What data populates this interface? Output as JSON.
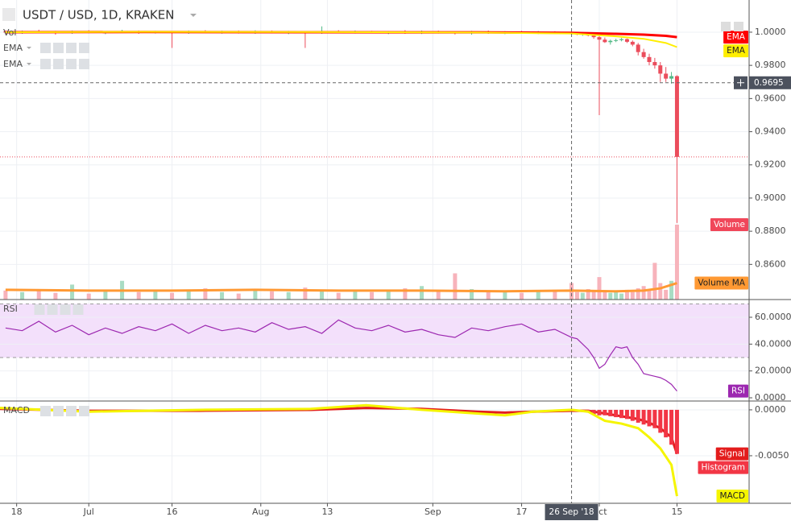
{
  "chart_data": [
    {
      "type": "candlestick",
      "title": "USDT / USD, 1D, KRAKEN",
      "indicators": [
        "Vol",
        "EMA",
        "EMA"
      ],
      "xlim": [
        14,
        149
      ],
      "ylim": [
        0.8388,
        1.0194
      ],
      "yticks": [
        {
          "value": 1.0,
          "label": "1.0000"
        },
        {
          "value": 0.98,
          "label": "0.9800"
        },
        {
          "value": 0.96,
          "label": "0.9600"
        },
        {
          "value": 0.94,
          "label": "0.9400"
        },
        {
          "value": 0.92,
          "label": "0.9200"
        },
        {
          "value": 0.9,
          "label": "0.9000"
        },
        {
          "value": 0.88,
          "label": "0.8800"
        },
        {
          "value": 0.86,
          "label": "0.8600"
        }
      ],
      "grid": true,
      "up_color": "#53b987",
      "down_color": "#eb4d5c",
      "x": [
        15,
        18,
        21,
        24,
        27,
        30,
        33,
        36,
        39,
        42,
        45,
        48,
        51,
        54,
        57,
        60,
        63,
        66,
        69,
        72,
        75,
        78,
        81,
        84,
        87,
        90,
        93,
        96,
        99,
        102,
        105,
        108,
        111,
        114,
        117,
        118,
        119,
        120,
        121,
        122,
        123,
        124,
        125,
        126,
        127,
        128,
        129,
        130,
        131,
        132,
        133,
        134,
        135,
        136
      ],
      "open": [
        1.0005,
        0.9998,
        1.0004,
        1.0,
        0.9996,
        1.0003,
        0.9999,
        1.0002,
        1.0006,
        0.9997,
        1.0001,
        0.9996,
        1.0003,
        0.9998,
        1.0002,
        0.9997,
        1.0004,
        0.9999,
        1.0001,
        0.9995,
        1.0006,
        0.9998,
        1.0003,
        0.9999,
        1.0,
        0.9996,
        1.0002,
        0.9998,
        0.9993,
        1.0001,
        0.9995,
        1.0,
        0.9997,
        1.0001,
        0.9996,
        0.999,
        0.9988,
        0.9992,
        0.998,
        0.997,
        0.9955,
        0.994,
        0.9948,
        0.9952,
        0.9958,
        0.9942,
        0.9925,
        0.988,
        0.985,
        0.982,
        0.98,
        0.975,
        0.972,
        0.9735
      ],
      "high": [
        1.0012,
        1.001,
        1.0015,
        1.0008,
        1.001,
        1.0012,
        1.0006,
        1.0014,
        1.001,
        1.0008,
        1.0006,
        1.001,
        1.0012,
        1.0009,
        1.001,
        1.0011,
        1.001,
        1.0008,
        1.0006,
        1.0035,
        1.0012,
        1.001,
        1.0008,
        1.0006,
        1.0012,
        1.001,
        1.0009,
        1.0004,
        1.0008,
        1.001,
        1.0006,
        1.0008,
        1.0007,
        1.0006,
        1.0004,
        0.9998,
        0.9995,
        0.9996,
        0.999,
        0.9985,
        0.9968,
        0.9955,
        0.996,
        0.9965,
        0.9962,
        0.995,
        0.9935,
        0.99,
        0.987,
        0.9845,
        0.982,
        0.979,
        0.976,
        0.974
      ],
      "low": [
        0.9992,
        0.999,
        0.9995,
        0.9985,
        0.999,
        0.9994,
        0.9988,
        0.9996,
        0.999,
        0.9992,
        0.9905,
        0.999,
        0.9995,
        0.9991,
        0.9992,
        0.999,
        0.9993,
        0.9988,
        0.9905,
        0.999,
        0.9994,
        0.9992,
        0.9995,
        0.9988,
        0.999,
        0.9989,
        0.9992,
        0.9986,
        0.9985,
        0.999,
        0.9988,
        0.9991,
        0.9989,
        0.999,
        0.9985,
        0.9982,
        0.9978,
        0.9975,
        0.996,
        0.95,
        0.9935,
        0.9925,
        0.994,
        0.9945,
        0.9935,
        0.9915,
        0.986,
        0.984,
        0.98,
        0.978,
        0.97,
        0.97,
        0.969,
        0.885
      ],
      "close": [
        0.9998,
        1.0004,
        1.0,
        0.9996,
        1.0003,
        0.9999,
        1.0002,
        1.0006,
        0.9997,
        1.0001,
        0.9996,
        1.0003,
        0.9998,
        1.0002,
        0.9997,
        1.0004,
        0.9999,
        1.0001,
        0.9995,
        1.0006,
        0.9998,
        1.0003,
        0.9999,
        1.0,
        0.9996,
        1.0002,
        0.9998,
        0.9993,
        1.0001,
        0.9995,
        1.0,
        0.9997,
        1.0001,
        0.9996,
        0.999,
        0.9988,
        0.9992,
        0.998,
        0.997,
        0.9955,
        0.994,
        0.9948,
        0.9952,
        0.9958,
        0.9942,
        0.9925,
        0.988,
        0.985,
        0.982,
        0.98,
        0.975,
        0.972,
        0.9735,
        0.9248
      ],
      "series": [
        {
          "name": "EMA",
          "color": "#ff0000",
          "x": [
            15,
            40,
            70,
            100,
            117,
            125,
            130,
            134,
            136
          ],
          "values": [
            1.0,
            1.0001,
            1.0,
            0.9999,
            0.9996,
            0.999,
            0.9985,
            0.9978,
            0.997
          ]
        },
        {
          "name": "EMA",
          "color": "#ffee00",
          "x": [
            15,
            40,
            70,
            100,
            117,
            125,
            130,
            134,
            136
          ],
          "values": [
            1.0,
            1.0002,
            1.0001,
            0.9998,
            0.9992,
            0.9975,
            0.996,
            0.9935,
            0.991
          ]
        }
      ],
      "volume": {
        "name": "Volume",
        "color": "#f0475a",
        "up_color": "#a9dcc3",
        "down_color": "#f7b3bb",
        "vlim": [
          0,
          400
        ],
        "values": [
          12,
          10,
          14,
          9,
          20,
          8,
          11,
          25,
          10,
          13,
          9,
          12,
          15,
          10,
          8,
          14,
          11,
          10,
          16,
          12,
          9,
          13,
          10,
          11,
          15,
          18,
          12,
          35,
          14,
          10,
          12,
          9,
          11,
          13,
          22,
          10,
          9,
          14,
          11,
          30,
          12,
          9,
          10,
          8,
          13,
          10,
          15,
          18,
          12,
          49,
          22,
          13,
          25,
          100
        ]
      },
      "volume_ma": {
        "name": "Volume MA",
        "color": "#ff9933",
        "x": [
          15,
          30,
          45,
          60,
          75,
          90,
          105,
          117,
          125,
          130,
          133,
          136
        ],
        "values": [
          13,
          12,
          12,
          13,
          12,
          12,
          11,
          12,
          11,
          12,
          15,
          22
        ]
      },
      "crosshair": {
        "x": 117,
        "x_label": "26 Sep '18",
        "y": 0.9695
      }
    },
    {
      "type": "line",
      "title": "RSI",
      "xlim": [
        14,
        149
      ],
      "ylim": [
        -2.4,
        73.2
      ],
      "yticks": [
        {
          "value": 60,
          "label": "60.0000"
        },
        {
          "value": 40,
          "label": "40.0000"
        },
        {
          "value": 20,
          "label": "20.0000"
        },
        {
          "value": 0,
          "label": "0.0000"
        }
      ],
      "band": [
        30,
        70
      ],
      "band_color": "#f3e0fb",
      "grid": true,
      "series": [
        {
          "name": "RSI",
          "color": "#9c27b0",
          "x": [
            15,
            18,
            21,
            24,
            27,
            30,
            33,
            36,
            39,
            42,
            45,
            48,
            51,
            54,
            57,
            60,
            63,
            66,
            69,
            72,
            75,
            78,
            81,
            84,
            87,
            90,
            93,
            96,
            99,
            102,
            105,
            108,
            111,
            114,
            117,
            118,
            119,
            120,
            121,
            122,
            123,
            124,
            125,
            126,
            127,
            128,
            129,
            130,
            131,
            132,
            133,
            134,
            135,
            136
          ],
          "values": [
            52,
            50,
            57,
            49,
            54,
            47,
            52,
            48,
            53,
            50,
            55,
            48,
            54,
            50,
            52,
            49,
            56,
            51,
            53,
            48,
            58,
            52,
            50,
            54,
            49,
            51,
            47,
            45,
            52,
            50,
            53,
            55,
            49,
            51,
            45,
            44,
            40,
            36,
            30,
            22,
            25,
            32,
            38,
            37,
            38,
            30,
            25,
            18,
            17,
            16,
            15,
            13,
            10,
            5
          ]
        }
      ]
    },
    {
      "type": "line",
      "title": "MACD",
      "xlim": [
        14,
        149
      ],
      "ylim": [
        -0.01018,
        0.00096
      ],
      "yticks": [
        {
          "value": 0,
          "label": "0.0000"
        },
        {
          "value": -0.005,
          "label": "-0.0050"
        }
      ],
      "grid": true,
      "xticks": [
        {
          "value": 17,
          "label": "18"
        },
        {
          "value": 30,
          "label": "Jul"
        },
        {
          "value": 45,
          "label": "16"
        },
        {
          "value": 61,
          "label": "Aug"
        },
        {
          "value": 73,
          "label": "13"
        },
        {
          "value": 92,
          "label": "Sep"
        },
        {
          "value": 108,
          "label": "17"
        },
        {
          "value": 122,
          "label": "Oct"
        },
        {
          "value": 136,
          "label": "15"
        }
      ],
      "series": [
        {
          "name": "Signal",
          "color": "#e31c1c",
          "x": [
            14,
            30,
            50,
            70,
            80,
            90,
            100,
            105,
            110,
            117,
            120,
            123,
            126,
            129,
            131,
            133,
            135,
            136
          ],
          "values": [
            0.0001,
            -0.0001,
            -0.0001,
            0.0,
            0.0002,
            0.0001,
            -0.0002,
            -0.0003,
            -0.0002,
            -0.0001,
            -0.0001,
            -0.0004,
            -0.0007,
            -0.001,
            -0.0014,
            -0.002,
            -0.003,
            -0.0048
          ]
        },
        {
          "name": "Histogram",
          "color": "#f23645",
          "style": "histogram",
          "x": [
            119,
            120,
            121,
            122,
            123,
            124,
            125,
            126,
            127,
            128,
            129,
            130,
            131,
            132,
            133,
            134,
            135,
            136
          ],
          "values": [
            -0.0001,
            -0.0003,
            -0.0005,
            -0.0006,
            -0.0006,
            -0.0007,
            -0.0008,
            -0.0009,
            -0.001,
            -0.0012,
            -0.0014,
            -0.0016,
            -0.0018,
            -0.002,
            -0.0025,
            -0.003,
            -0.0038,
            -0.0048
          ]
        },
        {
          "name": "MACD",
          "color": "#f5f500",
          "x": [
            14,
            30,
            50,
            70,
            80,
            90,
            100,
            105,
            110,
            117,
            120,
            123,
            126,
            129,
            131,
            133,
            135,
            136
          ],
          "values": [
            0.0002,
            -0.0002,
            0.0,
            0.0001,
            0.0005,
            0.0,
            -0.0004,
            -0.0006,
            -0.0002,
            0.0,
            -0.0002,
            -0.0012,
            -0.0015,
            -0.002,
            -0.003,
            -0.0042,
            -0.006,
            -0.0094
          ]
        }
      ]
    }
  ]
}
